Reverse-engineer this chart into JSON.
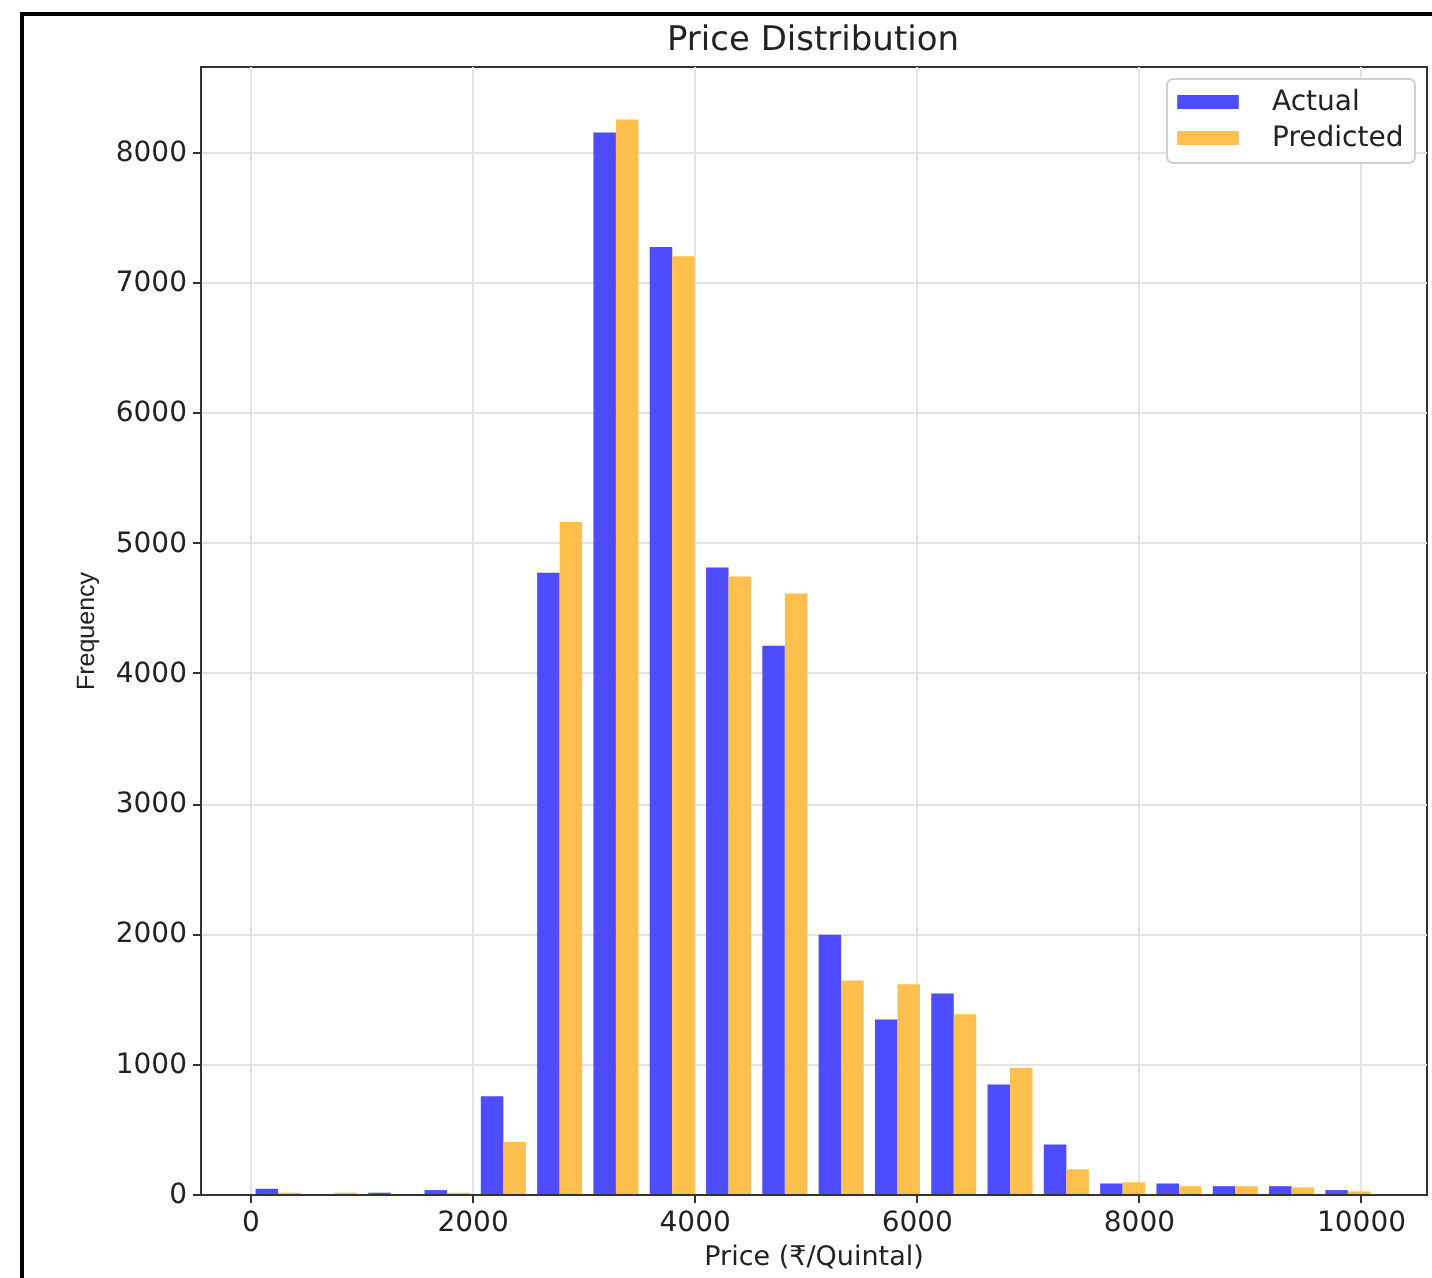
{
  "chart_data": {
    "type": "histogram",
    "title": "Price Distribution",
    "xlabel": "Price (₹/Quintal)",
    "ylabel": "Frequency",
    "bins": [
      0,
      507,
      1014,
      1521,
      2028,
      2535,
      3042,
      3549,
      4056,
      4563,
      5070,
      5577,
      6084,
      6591,
      7098,
      7605,
      8112,
      8619,
      9126,
      9633,
      10140
    ],
    "series": [
      {
        "name": "Actual",
        "color": "#4d4dff",
        "values": [
          40,
          0,
          10,
          30,
          750,
          4770,
          8150,
          7270,
          4810,
          4210,
          1990,
          1340,
          1540,
          840,
          380,
          80,
          80,
          60,
          60,
          30
        ]
      },
      {
        "name": "Predicted",
        "color": "#ffc04d",
        "values": [
          10,
          10,
          0,
          10,
          400,
          5160,
          8250,
          7200,
          4740,
          4610,
          1640,
          1610,
          1380,
          970,
          190,
          90,
          60,
          60,
          50,
          20
        ]
      }
    ],
    "xlim": [
      -450,
      10590
    ],
    "ylim": [
      0,
      8660
    ],
    "xticks": [
      0,
      2000,
      4000,
      6000,
      8000,
      10000
    ],
    "yticks": [
      0,
      1000,
      2000,
      3000,
      4000,
      5000,
      6000,
      7000,
      8000
    ],
    "grid": true,
    "legend": "top right"
  }
}
